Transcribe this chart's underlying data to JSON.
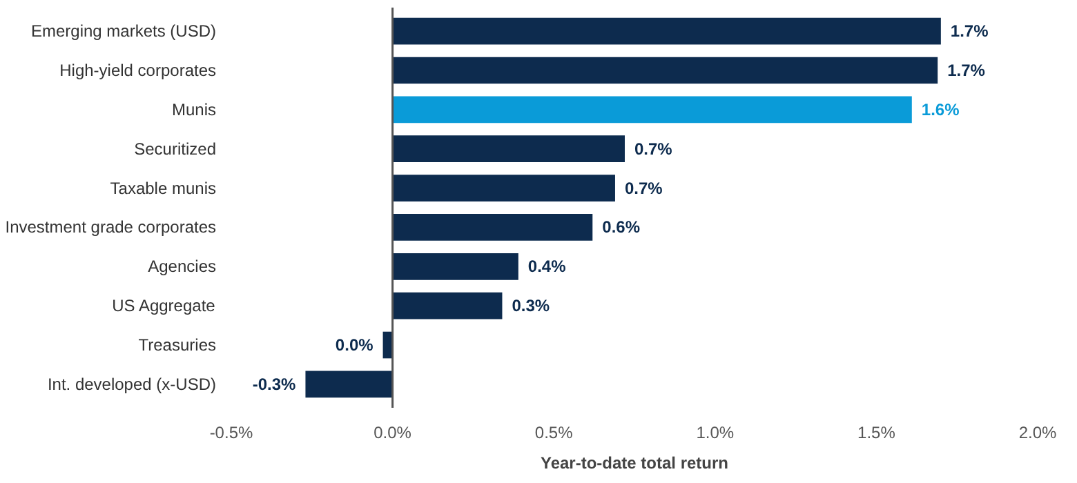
{
  "chart_data": {
    "type": "bar",
    "orientation": "horizontal",
    "xlabel": "Year-to-date total return",
    "categories": [
      "Emerging markets (USD)",
      "High-yield corporates",
      "Munis",
      "Securitized",
      "Taxable munis",
      "Investment grade corporates",
      "Agencies",
      "US Aggregate",
      "Treasuries",
      "Int. developed (x-USD)"
    ],
    "values": [
      1.7,
      1.69,
      1.61,
      0.72,
      0.69,
      0.62,
      0.39,
      0.34,
      -0.03,
      -0.27
    ],
    "colors": [
      "#0d2b4e",
      "#0d2b4e",
      "#0a9bd8",
      "#0d2b4e",
      "#0d2b4e",
      "#0d2b4e",
      "#0d2b4e",
      "#0d2b4e",
      "#0d2b4e",
      "#0d2b4e"
    ],
    "value_labels": [
      "1.7%",
      "1.7%",
      "1.6%",
      "0.7%",
      "0.7%",
      "0.6%",
      "0.4%",
      "0.3%",
      "0.0%",
      "-0.3%"
    ],
    "xlim": [
      -0.5,
      2.0
    ],
    "xticks": [
      {
        "value": -0.5,
        "label": "-0.5%"
      },
      {
        "value": 0,
        "label": "0.0%"
      },
      {
        "value": 0.5,
        "label": "0.5%"
      },
      {
        "value": 1,
        "label": "1.0%"
      },
      {
        "value": 1.5,
        "label": "1.5%"
      },
      {
        "value": 2,
        "label": "2.0%"
      }
    ],
    "ref_lines": [
      {
        "axis": "x",
        "value": 0,
        "color": "#555555"
      }
    ],
    "grid": false
  }
}
